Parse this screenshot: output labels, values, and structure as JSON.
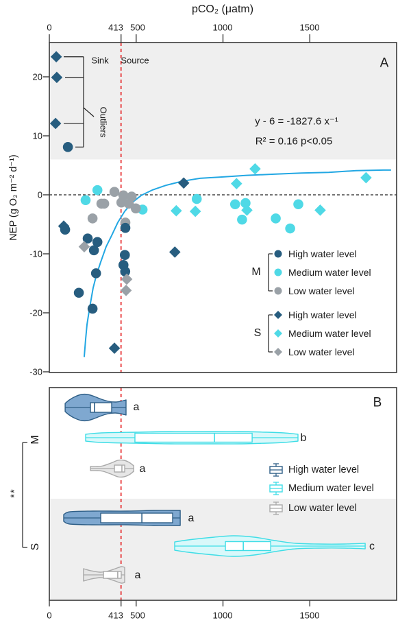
{
  "top_axis": {
    "title": "pCO₂ (μatm)",
    "tick_labels": [
      "0",
      "413",
      "500",
      "1000",
      "1500"
    ]
  },
  "bottom_axis": {
    "tick_labels": [
      "0",
      "413",
      "500",
      "1000",
      "1500"
    ]
  },
  "y_axis": {
    "label": "NEP (g O₂ m⁻² d⁻¹)",
    "tick_labels": [
      "20",
      "10",
      "0",
      "-10",
      "-20",
      "-30"
    ]
  },
  "panel_a": {
    "label": "A",
    "sink": "Sink",
    "source": "Source",
    "outliers": "Outliers",
    "equation_line1": "y - 6 = -1827.6 x⁻¹",
    "equation_line2": "R² = 0.16  p<0.05",
    "legend": {
      "m_label": "M",
      "s_label": "S",
      "m_items": [
        "High water level",
        "Medium water level",
        "Low water level"
      ],
      "s_items": [
        "High water level",
        "Medium water level",
        "Low water level"
      ]
    }
  },
  "panel_b": {
    "label": "B",
    "m_label": "M",
    "s_label": "S",
    "significance": "**",
    "legend_items": [
      "High water level",
      "Medium water level",
      "Low water level"
    ],
    "letters": [
      "a",
      "b",
      "a",
      "a",
      "c",
      "a"
    ]
  },
  "colors": {
    "high": "#275d7f",
    "medium": "#4fd9e6",
    "low": "#9aa1a7",
    "curve": "#22a7e3",
    "reference_red": "#e41a1c",
    "band": "#efefef",
    "border": "#3a3a3a",
    "violin_high_fill": "#7fa8d0",
    "violin_high_stroke": "#2f5f87",
    "violin_medium_fill": "#d9f8fa",
    "violin_medium_stroke": "#3fdde6",
    "violin_low_fill": "#e6e6e6",
    "violin_low_stroke": "#a9a9a9"
  },
  "chart_data": [
    {
      "panel": "A",
      "type": "scatter",
      "x_label": "pCO₂ (μatm)",
      "y_label": "NEP (g O₂ m⁻² d⁻¹)",
      "x_ticks": [
        0,
        413,
        500,
        1000,
        1500
      ],
      "x_range": [
        0,
        2000
      ],
      "y_ticks": [
        20,
        10,
        0,
        -10,
        -20,
        -30
      ],
      "y_range": [
        -30,
        25.8
      ],
      "reference_lines": {
        "vertical_x": 413,
        "horizontal_y": 0
      },
      "shaded_region_above_y": 6,
      "series": [
        {
          "name": "M High water level",
          "group": "M",
          "level": "High",
          "marker": "circle",
          "color_key": "high",
          "points": [
            [
              107,
              8.1
            ],
            [
              91,
              -5.9
            ],
            [
              170,
              -16.6
            ],
            [
              221,
              -7.4
            ],
            [
              249,
              -19.3
            ],
            [
              257,
              -9.4
            ],
            [
              269,
              -13.3
            ],
            [
              277,
              -8.0
            ],
            [
              427,
              -11.9
            ],
            [
              435,
              -10.2
            ],
            [
              437,
              -13.0
            ],
            [
              438,
              -5.6
            ]
          ]
        },
        {
          "name": "M Medium water level",
          "group": "M",
          "level": "Medium",
          "marker": "circle",
          "color_key": "medium",
          "points": [
            [
              209,
              -0.9
            ],
            [
              277,
              0.8
            ],
            [
              420,
              -1.2
            ],
            [
              537,
              -2.5
            ],
            [
              849,
              -0.7
            ],
            [
              1070,
              -1.6
            ],
            [
              1110,
              -4.2
            ],
            [
              1130,
              -1.4
            ],
            [
              1304,
              -4.0
            ],
            [
              1387,
              -5.7
            ],
            [
              1434,
              -1.6
            ]
          ]
        },
        {
          "name": "M Low water level",
          "group": "M",
          "level": "Low",
          "marker": "circle",
          "color_key": "low",
          "points": [
            [
              249,
              -4.0
            ],
            [
              300,
              -1.5
            ],
            [
              316,
              -1.5
            ],
            [
              375,
              0.5
            ],
            [
              415,
              -1.3
            ],
            [
              427,
              -0.1
            ],
            [
              458,
              -1.5
            ],
            [
              474,
              -0.3
            ],
            [
              498,
              -2.3
            ],
            [
              438,
              -4.7
            ]
          ]
        },
        {
          "name": "S High water level",
          "group": "S",
          "level": "High",
          "marker": "diamond",
          "color_key": "high",
          "points": [
            [
              40,
              23.4
            ],
            [
              43,
              19.9
            ],
            [
              36,
              12.1
            ],
            [
              83,
              -5.3
            ],
            [
              375,
              -26.0
            ],
            [
              723,
              -9.7
            ],
            [
              774,
              2.0
            ]
          ]
        },
        {
          "name": "S Medium water level",
          "group": "S",
          "level": "Medium",
          "marker": "diamond",
          "color_key": "medium",
          "points": [
            [
              731,
              -2.7
            ],
            [
              841,
              -2.8
            ],
            [
              1078,
              1.9
            ],
            [
              1138,
              -2.6
            ],
            [
              1185,
              4.4
            ],
            [
              1560,
              -2.6
            ],
            [
              1824,
              2.9
            ]
          ]
        },
        {
          "name": "S Low water level",
          "group": "S",
          "level": "Low",
          "marker": "diamond",
          "color_key": "low",
          "points": [
            [
              201,
              -8.8
            ],
            [
              446,
              -14.3
            ],
            [
              442,
              -16.2
            ]
          ]
        }
      ],
      "outlier_bracket_targets": [
        [
          40,
          23.4
        ],
        [
          43,
          19.9
        ],
        [
          36,
          12.1
        ],
        [
          107,
          8.1
        ]
      ],
      "fit_curve": {
        "equation": "y - 6 = -1827.6 x⁻¹",
        "r_squared": 0.16,
        "p": "<0.05",
        "points": [
          [
            201,
            -27.4
          ],
          [
            209,
            -24.5
          ],
          [
            217,
            -22.0
          ],
          [
            225,
            -20.5
          ],
          [
            233,
            -19.0
          ],
          [
            252,
            -15.8
          ],
          [
            272,
            -13.5
          ],
          [
            296,
            -11.4
          ],
          [
            327,
            -8.8
          ],
          [
            359,
            -6.9
          ],
          [
            394,
            -4.7
          ],
          [
            434,
            -2.8
          ],
          [
            477,
            -1.3
          ],
          [
            529,
            -0.1
          ],
          [
            592,
            0.8
          ],
          [
            671,
            1.6
          ],
          [
            765,
            2.3
          ],
          [
            868,
            2.8
          ],
          [
            978,
            3.0
          ],
          [
            1136,
            3.3
          ],
          [
            1294,
            3.5
          ],
          [
            1452,
            3.7
          ],
          [
            1609,
            3.8
          ],
          [
            1767,
            4.1
          ],
          [
            1925,
            4.2
          ],
          [
            1965,
            4.2
          ]
        ]
      }
    },
    {
      "panel": "B",
      "type": "violin",
      "x_ticks": [
        0,
        413,
        500,
        1000,
        1500
      ],
      "x_range": [
        0,
        2000
      ],
      "reference_lines": {
        "vertical_x": 413
      },
      "group_significance": "**",
      "violins": [
        {
          "group": "M",
          "level": "High",
          "letter": "a",
          "color_key": "high",
          "range": [
            91,
            442
          ],
          "box": [
            237,
            359
          ],
          "median": 260,
          "box_hh": 7,
          "profile": [
            [
              91,
              6
            ],
            [
              115,
              11
            ],
            [
              150,
              16
            ],
            [
              185,
              19
            ],
            [
              221,
              19
            ],
            [
              260,
              16
            ],
            [
              300,
              12
            ],
            [
              340,
              9
            ],
            [
              379,
              8
            ],
            [
              410,
              9
            ],
            [
              442,
              11
            ]
          ]
        },
        {
          "group": "M",
          "level": "Medium",
          "letter": "b",
          "color_key": "medium",
          "range": [
            209,
            1432
          ],
          "box": [
            493,
            1168
          ],
          "median": 951,
          "box_hh": 6.5,
          "profile": [
            [
              209,
              5
            ],
            [
              300,
              7
            ],
            [
              500,
              8
            ],
            [
              700,
              9
            ],
            [
              951,
              9
            ],
            [
              1100,
              9
            ],
            [
              1250,
              8
            ],
            [
              1350,
              7
            ],
            [
              1432,
              5
            ]
          ]
        },
        {
          "group": "M",
          "level": "Low",
          "letter": "a",
          "color_key": "low",
          "range": [
            237,
            486
          ],
          "box": [
            375,
            434
          ],
          "median": 418,
          "box_hh": 5,
          "profile": [
            [
              237,
              3
            ],
            [
              280,
              3
            ],
            [
              310,
              4
            ],
            [
              355,
              8
            ],
            [
              395,
              12
            ],
            [
              430,
              12
            ],
            [
              460,
              9
            ],
            [
              486,
              4
            ]
          ]
        },
        {
          "group": "S",
          "level": "High",
          "letter": "a",
          "color_key": "high",
          "range": [
            83,
            754
          ],
          "box": [
            296,
            710
          ],
          "median": 533,
          "box_hh": 7,
          "profile": [
            [
              83,
              5
            ],
            [
              120,
              9
            ],
            [
              250,
              10
            ],
            [
              450,
              10
            ],
            [
              600,
              11
            ],
            [
              710,
              11
            ],
            [
              754,
              11
            ]
          ]
        },
        {
          "group": "S",
          "level": "Medium",
          "letter": "c",
          "color_key": "medium",
          "range": [
            722,
            1819
          ],
          "box": [
            1014,
            1275
          ],
          "median": 1117,
          "box_hh": 6.5,
          "profile": [
            [
              722,
              6
            ],
            [
              800,
              9
            ],
            [
              950,
              13
            ],
            [
              1060,
              15
            ],
            [
              1180,
              13
            ],
            [
              1300,
              8
            ],
            [
              1420,
              4
            ],
            [
              1550,
              3
            ],
            [
              1700,
              3
            ],
            [
              1819,
              4
            ]
          ]
        },
        {
          "group": "S",
          "level": "Low",
          "letter": "a",
          "color_key": "low",
          "range": [
            197,
            434
          ],
          "box": [
            312,
            414
          ],
          "median": 394,
          "box_hh": 5,
          "profile": [
            [
              197,
              9
            ],
            [
              240,
              6
            ],
            [
              290,
              4
            ],
            [
              330,
              5
            ],
            [
              380,
              9
            ],
            [
              415,
              12
            ],
            [
              434,
              11
            ]
          ]
        }
      ]
    }
  ]
}
